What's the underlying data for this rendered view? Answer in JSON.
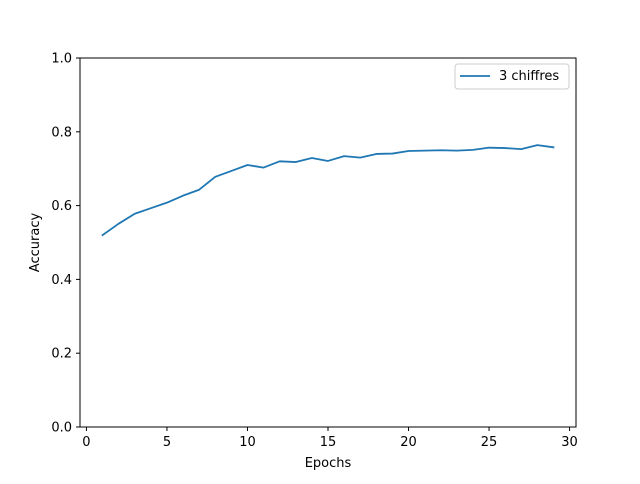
{
  "chart_data": {
    "type": "line",
    "title": "",
    "xlabel": "Epochs",
    "ylabel": "Accuracy",
    "xlim": [
      -0.4,
      30.4
    ],
    "ylim": [
      0.0,
      1.0
    ],
    "xticks": [
      0,
      5,
      10,
      15,
      20,
      25,
      30
    ],
    "yticks": [
      0.0,
      0.2,
      0.4,
      0.6,
      0.8,
      1.0
    ],
    "xtick_labels": [
      "0",
      "5",
      "10",
      "15",
      "20",
      "25",
      "30"
    ],
    "ytick_labels": [
      "0.0",
      "0.2",
      "0.4",
      "0.6",
      "0.8",
      "1.0"
    ],
    "grid": false,
    "legend_position": "top-right",
    "series": [
      {
        "name": "3 chiffres",
        "color": "#1f77b4",
        "x": [
          1,
          2,
          3,
          4,
          5,
          6,
          7,
          8,
          9,
          10,
          11,
          12,
          13,
          14,
          15,
          16,
          17,
          18,
          19,
          20,
          21,
          22,
          23,
          24,
          25,
          26,
          27,
          28,
          29
        ],
        "values": [
          0.52,
          0.551,
          0.578,
          0.593,
          0.608,
          0.627,
          0.643,
          0.678,
          0.694,
          0.71,
          0.703,
          0.72,
          0.718,
          0.729,
          0.721,
          0.734,
          0.73,
          0.74,
          0.741,
          0.748,
          0.749,
          0.75,
          0.749,
          0.751,
          0.757,
          0.756,
          0.753,
          0.764,
          0.758
        ]
      }
    ]
  }
}
